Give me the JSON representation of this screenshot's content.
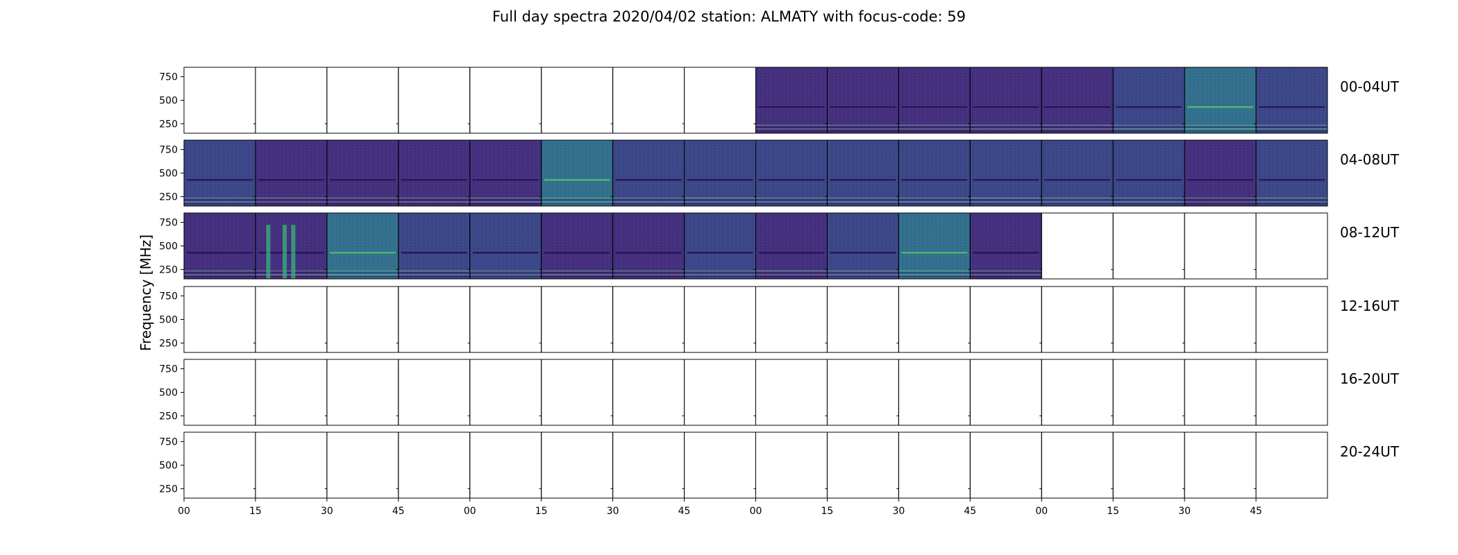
{
  "title": "Full day spectra 2020/04/02 station: ALMATY with focus-code: 59",
  "chart_data": {
    "type": "heatmap",
    "title": "Full day spectra 2020/04/02 station: ALMATY with focus-code: 59",
    "ylabel": "Frequency [MHz]",
    "xlabel": "",
    "yticks": [
      250,
      500,
      750
    ],
    "ylim": [
      150,
      850
    ],
    "xtick_labels": [
      "00",
      "15",
      "30",
      "45",
      "00",
      "15",
      "30",
      "45",
      "00",
      "15",
      "30",
      "45",
      "00",
      "15",
      "30",
      "45"
    ],
    "rows": [
      {
        "label": "00-04UT",
        "panels": [
          "empty",
          "empty",
          "empty",
          "empty",
          "empty",
          "empty",
          "empty",
          "empty",
          "dark",
          "dark",
          "dark",
          "dark",
          "dark",
          "mid",
          "bright",
          "mid"
        ]
      },
      {
        "label": "04-08UT",
        "panels": [
          "mid",
          "dark",
          "dark",
          "dark",
          "dark",
          "bright",
          "mid",
          "mid",
          "mid",
          "mid",
          "mid",
          "mid",
          "mid",
          "mid",
          "dark",
          "mid"
        ]
      },
      {
        "label": "08-12UT",
        "panels": [
          "dark",
          "burst",
          "bright",
          "mid",
          "mid",
          "dark",
          "dark",
          "mid",
          "dark",
          "mid",
          "bright",
          "dark",
          "empty",
          "empty",
          "empty",
          "empty"
        ]
      },
      {
        "label": "12-16UT",
        "panels": [
          "empty",
          "empty",
          "empty",
          "empty",
          "empty",
          "empty",
          "empty",
          "empty",
          "empty",
          "empty",
          "empty",
          "empty",
          "empty",
          "empty",
          "empty",
          "empty"
        ]
      },
      {
        "label": "16-20UT",
        "panels": [
          "empty",
          "empty",
          "empty",
          "empty",
          "empty",
          "empty",
          "empty",
          "empty",
          "empty",
          "empty",
          "empty",
          "empty",
          "empty",
          "empty",
          "empty",
          "empty"
        ]
      },
      {
        "label": "20-24UT",
        "panels": [
          "empty",
          "empty",
          "empty",
          "empty",
          "empty",
          "empty",
          "empty",
          "empty",
          "empty",
          "empty",
          "empty",
          "empty",
          "empty",
          "empty",
          "empty",
          "empty"
        ]
      }
    ],
    "colors": {
      "dark": "#44307e",
      "mid": "#3c4789",
      "bright": "#33708e",
      "burst": "#44307e",
      "burst_highlight": "#35b779",
      "band_line": "#2a0f4e",
      "band_bright": "#4ec26c"
    }
  }
}
